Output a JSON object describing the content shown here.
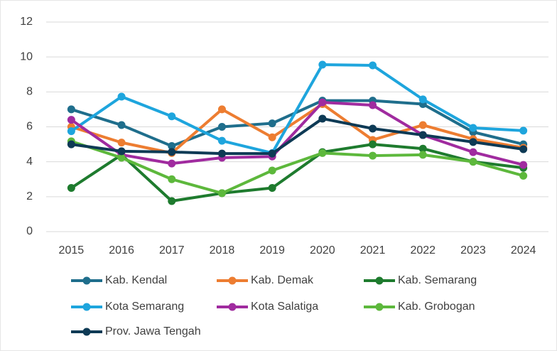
{
  "chart_data": {
    "type": "line",
    "categories": [
      "2015",
      "2016",
      "2017",
      "2018",
      "2019",
      "2020",
      "2021",
      "2022",
      "2023",
      "2024"
    ],
    "ylim": [
      0,
      12
    ],
    "yticks": [
      0,
      2,
      4,
      6,
      8,
      10,
      12
    ],
    "grid": true,
    "legend": "bottom",
    "series": [
      {
        "name": "Kab. Kendal",
        "color": "#1f6e8c",
        "values": [
          7.0,
          6.1,
          4.9,
          6.0,
          6.2,
          7.5,
          7.5,
          7.3,
          5.7,
          5.0
        ]
      },
      {
        "name": "Kab. Demak",
        "color": "#ed7d31",
        "values": [
          6.0,
          5.1,
          4.5,
          7.0,
          5.4,
          7.3,
          5.25,
          6.1,
          5.3,
          4.8
        ]
      },
      {
        "name": "Kab. Semarang",
        "color": "#1e7b2e",
        "values": [
          2.5,
          4.4,
          1.75,
          2.2,
          2.5,
          4.55,
          5.0,
          4.75,
          4.0,
          3.65
        ]
      },
      {
        "name": "Kota Semarang",
        "color": "#1ea5dd",
        "values": [
          5.75,
          7.73,
          6.6,
          5.2,
          4.5,
          9.56,
          9.52,
          7.57,
          5.94,
          5.78
        ]
      },
      {
        "name": "Kota Salatiga",
        "color": "#a02b9f",
        "values": [
          6.4,
          4.4,
          3.9,
          4.23,
          4.3,
          7.4,
          7.24,
          5.53,
          4.55,
          3.82
        ]
      },
      {
        "name": "Kab. Grobogan",
        "color": "#5db83c",
        "values": [
          5.17,
          4.23,
          3.0,
          2.2,
          3.5,
          4.5,
          4.35,
          4.4,
          4.0,
          3.2
        ]
      },
      {
        "name": "Prov. Jawa Tengah",
        "color": "#0e3a55",
        "values": [
          5.0,
          4.6,
          4.56,
          4.47,
          4.47,
          6.47,
          5.9,
          5.53,
          5.13,
          4.72
        ]
      }
    ]
  }
}
